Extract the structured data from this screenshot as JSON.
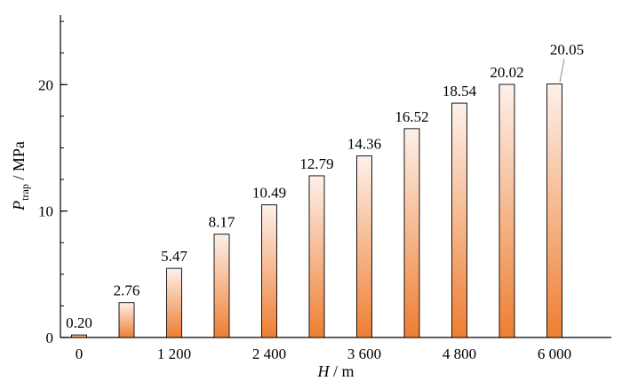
{
  "chart_data": {
    "type": "bar",
    "x": [
      0,
      600,
      1200,
      1800,
      2400,
      3000,
      3600,
      4200,
      4800,
      5400,
      6000
    ],
    "values": [
      0.2,
      2.76,
      5.47,
      8.17,
      10.49,
      12.79,
      14.36,
      16.52,
      18.54,
      20.02,
      20.05
    ],
    "data_labels": [
      "0.20",
      "2.76",
      "5.47",
      "8.17",
      "10.49",
      "12.79",
      "14.36",
      "16.52",
      "18.54",
      "20.02",
      "20.05"
    ],
    "x_tick_values": [
      0,
      1200,
      2400,
      3600,
      4800,
      6000
    ],
    "x_tick_labels": [
      "0",
      "1 200",
      "2 400",
      "3 600",
      "4 800",
      "6 000"
    ],
    "y_tick_labels": [
      "0",
      "10",
      "20"
    ],
    "y_ticks": [
      0,
      10,
      20
    ],
    "ylim": [
      0,
      25.5
    ],
    "xlabel": {
      "italic": "H",
      "rest": " / m"
    },
    "ylabel": {
      "italic": "P",
      "sub": "trap",
      "rest": " / MPa"
    },
    "grid": false,
    "bar_gradient": {
      "top": "#fdf1ea",
      "bottom": "#ee7e32"
    },
    "bar_stroke": "#000000"
  }
}
